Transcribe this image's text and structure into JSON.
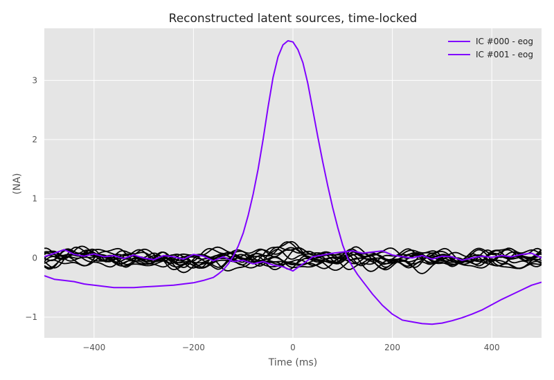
{
  "chart_data": {
    "type": "line",
    "title": "Reconstructed latent sources, time-locked",
    "xlabel": "Time (ms)",
    "ylabel": "(NA)",
    "xlim": [
      -500,
      500
    ],
    "ylim": [
      -1.35,
      3.88
    ],
    "xticks": [
      -400,
      -200,
      0,
      200,
      400
    ],
    "xtick_labels": [
      "−400",
      "−200",
      "0",
      "200",
      "400"
    ],
    "yticks": [
      -1,
      0,
      1,
      2,
      3
    ],
    "ytick_labels": [
      "−1",
      "0",
      "1",
      "2",
      "3"
    ],
    "grid": true,
    "legend_position": "top-right",
    "background_color": "#e5e5e5",
    "grid_color": "#ffffff",
    "series": [
      {
        "name": "IC #000 - eog",
        "color": "#8000ff",
        "x": [
          -500,
          -480,
          -460,
          -440,
          -420,
          -400,
          -380,
          -360,
          -340,
          -320,
          -300,
          -280,
          -260,
          -240,
          -220,
          -200,
          -180,
          -160,
          -150,
          -140,
          -130,
          -120,
          -110,
          -100,
          -90,
          -80,
          -70,
          -60,
          -50,
          -40,
          -30,
          -20,
          -10,
          0,
          10,
          20,
          30,
          40,
          50,
          60,
          70,
          80,
          90,
          100,
          110,
          120,
          130,
          140,
          150,
          160,
          180,
          200,
          220,
          240,
          260,
          280,
          300,
          320,
          340,
          360,
          380,
          400,
          420,
          440,
          460,
          480,
          500
        ],
        "values": [
          -0.3,
          -0.36,
          -0.38,
          -0.4,
          -0.44,
          -0.46,
          -0.48,
          -0.5,
          -0.5,
          -0.5,
          -0.49,
          -0.48,
          -0.47,
          -0.46,
          -0.44,
          -0.42,
          -0.38,
          -0.33,
          -0.27,
          -0.2,
          -0.1,
          0.03,
          0.2,
          0.42,
          0.72,
          1.08,
          1.5,
          2.0,
          2.55,
          3.05,
          3.4,
          3.6,
          3.67,
          3.65,
          3.52,
          3.3,
          2.95,
          2.5,
          2.05,
          1.62,
          1.22,
          0.85,
          0.52,
          0.22,
          0.0,
          -0.15,
          -0.28,
          -0.39,
          -0.5,
          -0.61,
          -0.8,
          -0.95,
          -1.05,
          -1.08,
          -1.11,
          -1.12,
          -1.1,
          -1.06,
          -1.01,
          -0.95,
          -0.88,
          -0.79,
          -0.7,
          -0.62,
          -0.54,
          -0.46,
          -0.41
        ]
      },
      {
        "name": "IC #001 - eog",
        "color": "#8000ff",
        "x": [
          -500,
          -480,
          -460,
          -440,
          -420,
          -400,
          -380,
          -360,
          -340,
          -320,
          -300,
          -280,
          -260,
          -240,
          -220,
          -200,
          -180,
          -160,
          -140,
          -120,
          -100,
          -80,
          -60,
          -40,
          -20,
          0,
          20,
          40,
          60,
          80,
          100,
          120,
          140,
          160,
          180,
          200,
          220,
          240,
          260,
          280,
          300,
          320,
          340,
          360,
          380,
          400,
          420,
          440,
          460,
          480,
          500
        ],
        "values": [
          0.02,
          0.08,
          0.14,
          0.06,
          0.03,
          0.07,
          0.02,
          0.04,
          -0.01,
          0.05,
          0.0,
          -0.03,
          0.04,
          0.02,
          -0.02,
          0.06,
          0.03,
          -0.05,
          0.02,
          -0.06,
          -0.04,
          -0.1,
          -0.06,
          -0.12,
          -0.15,
          -0.22,
          -0.1,
          0.02,
          0.05,
          0.08,
          0.1,
          0.12,
          0.08,
          0.1,
          0.12,
          0.05,
          0.02,
          0.0,
          0.04,
          -0.02,
          0.03,
          0.02,
          -0.04,
          0.0,
          0.03,
          0.01,
          0.04,
          0.02,
          0.06,
          0.08,
          0.0
        ]
      }
    ]
  },
  "background_traces": {
    "color": "#000000",
    "count": 13
  }
}
